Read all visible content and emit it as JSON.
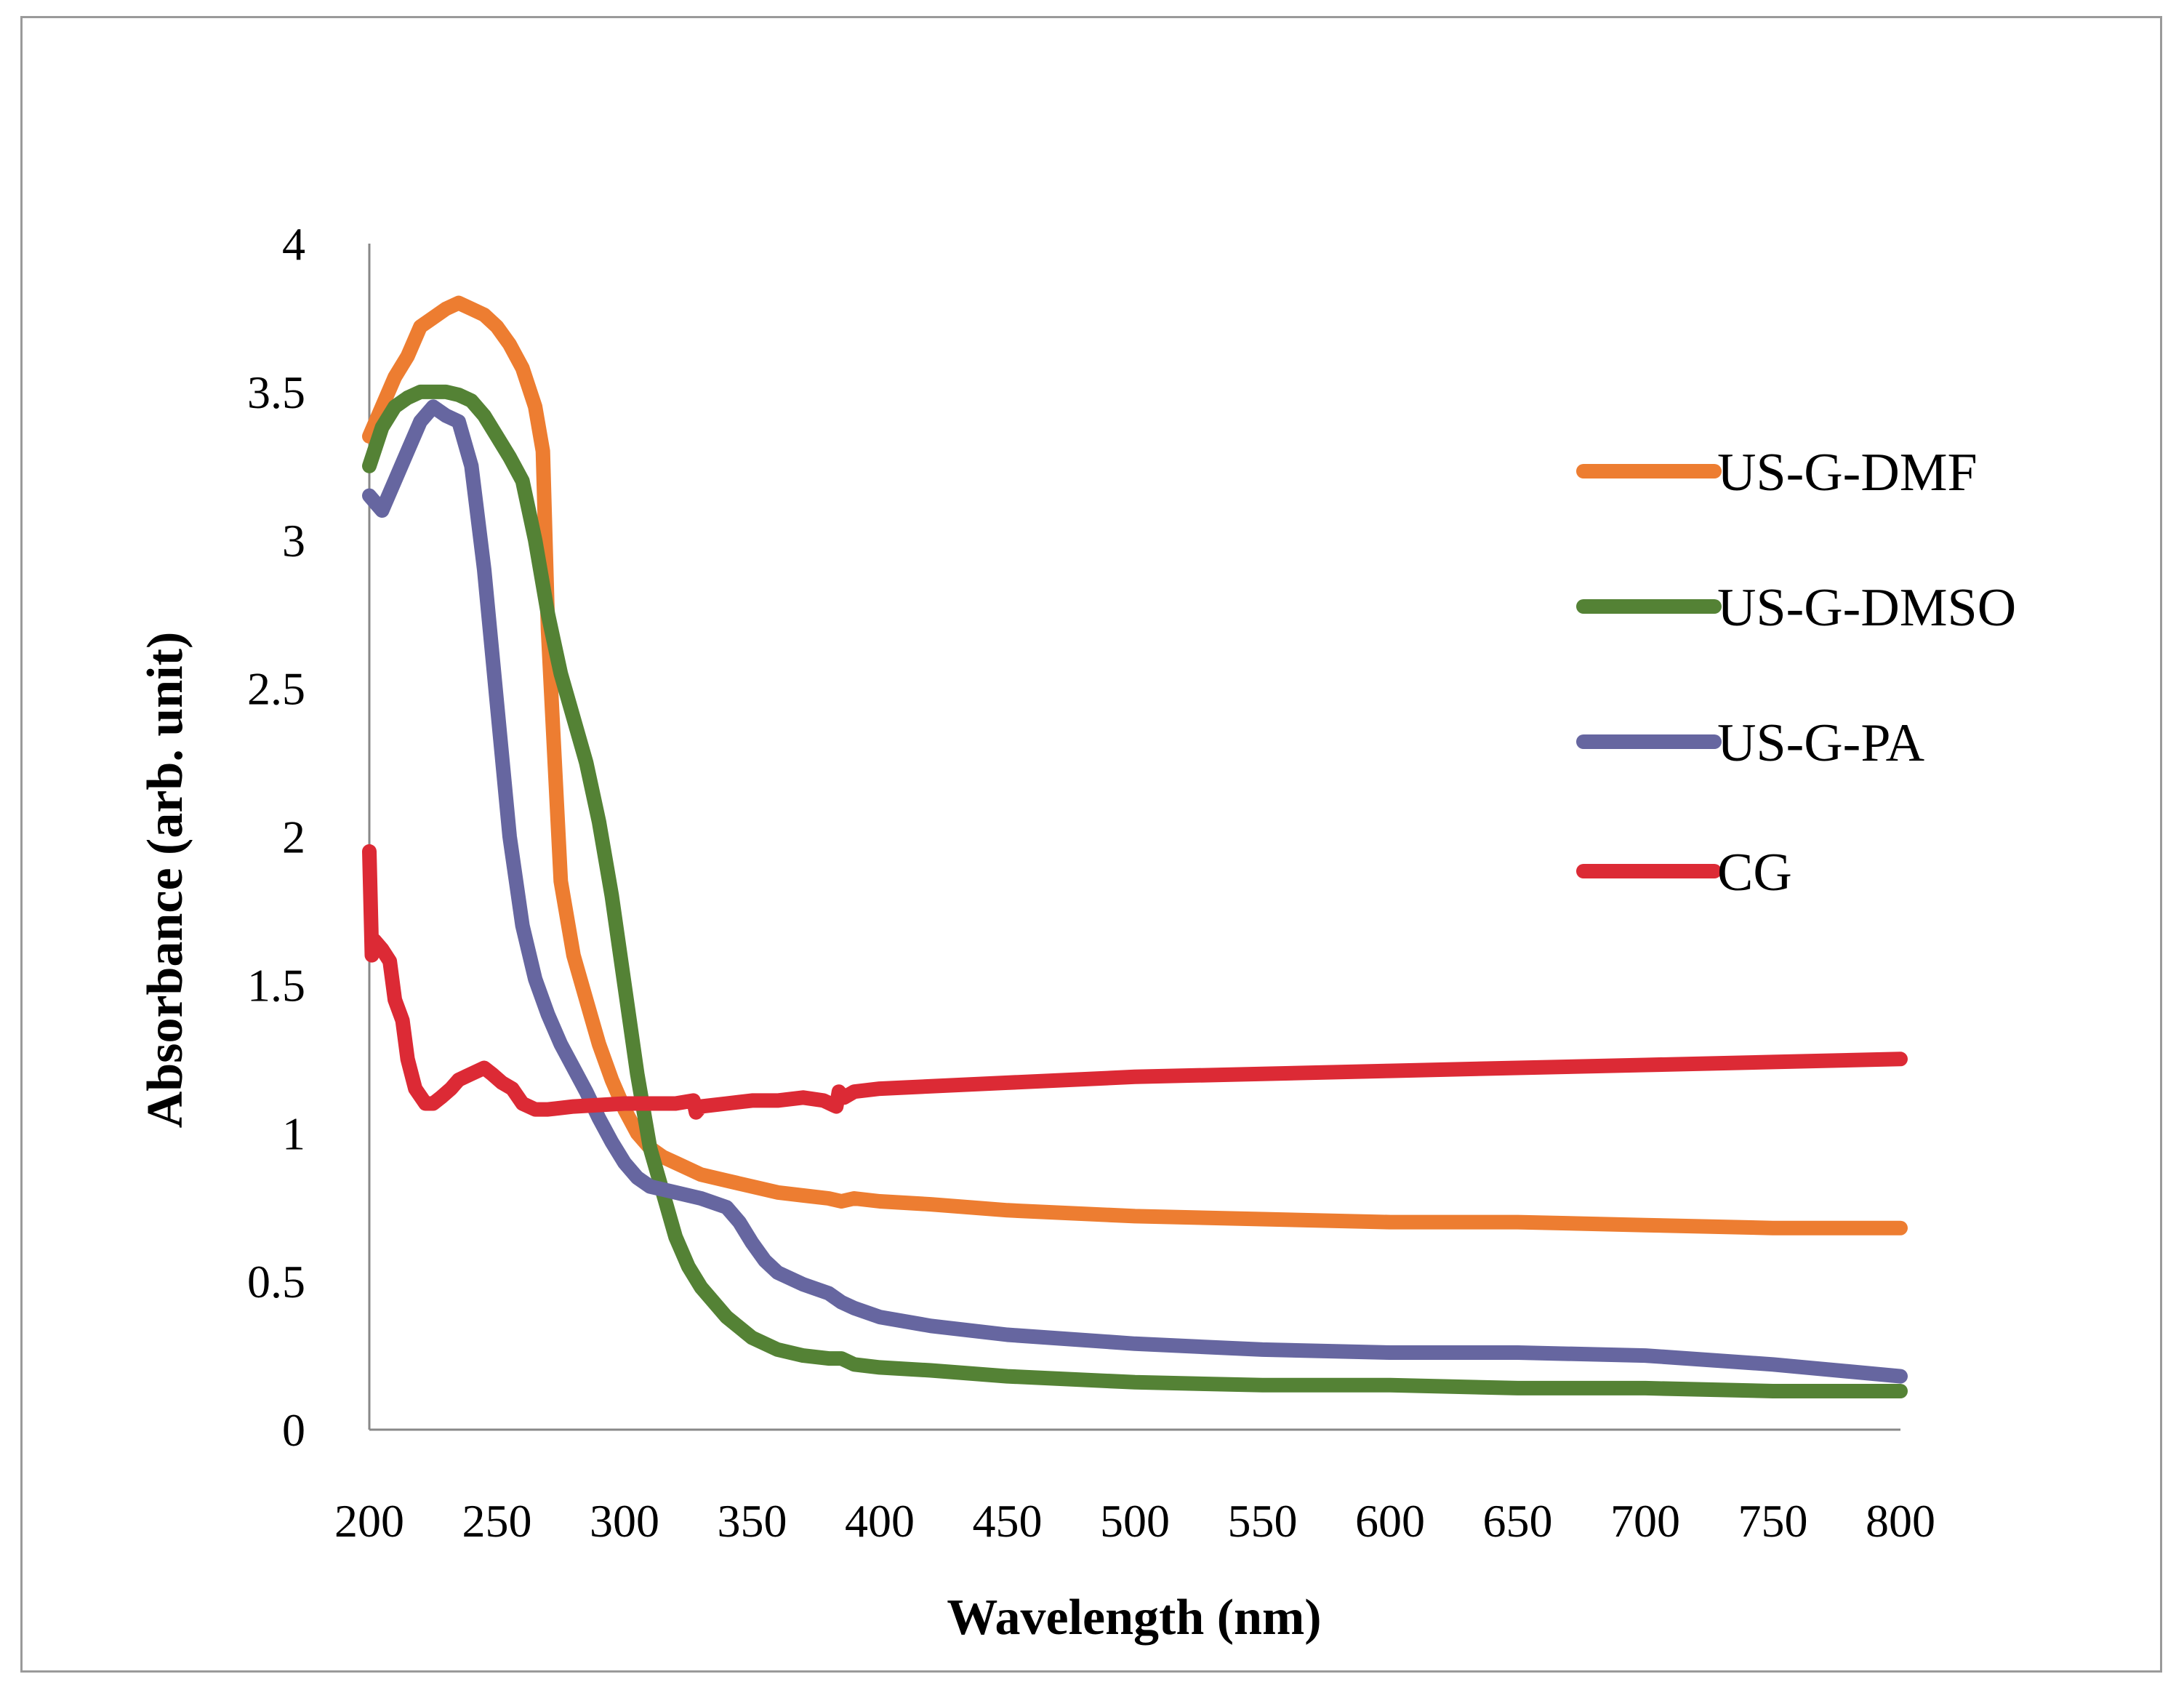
{
  "chart_data": {
    "type": "line",
    "title": "",
    "xlabel": "Wavelength (nm)",
    "ylabel": "Absorbance (arb. unit)",
    "xlim": [
      200,
      800
    ],
    "ylim": [
      0,
      4
    ],
    "xticks": [
      200,
      250,
      300,
      350,
      400,
      450,
      500,
      550,
      600,
      650,
      700,
      750,
      800
    ],
    "yticks": [
      0,
      0.5,
      1,
      1.5,
      2,
      2.5,
      3,
      3.5,
      4
    ],
    "ytick_labels": [
      "0",
      "0.5",
      "1",
      "1.5",
      "2",
      "2.5",
      "3",
      "3.5",
      "4"
    ],
    "grid": false,
    "legend_position": "right",
    "series": [
      {
        "name": "US-G-DMF",
        "color": "#ED7D31",
        "x": [
          200,
          205,
          210,
          215,
          220,
          225,
          230,
          235,
          240,
          245,
          250,
          255,
          260,
          265,
          268,
          270,
          275,
          280,
          285,
          290,
          295,
          300,
          305,
          310,
          315,
          320,
          330,
          340,
          350,
          360,
          370,
          380,
          385,
          390,
          400,
          420,
          450,
          500,
          550,
          600,
          650,
          700,
          750,
          800
        ],
        "y": [
          3.35,
          3.45,
          3.55,
          3.62,
          3.72,
          3.75,
          3.78,
          3.8,
          3.78,
          3.76,
          3.72,
          3.66,
          3.58,
          3.45,
          3.3,
          2.7,
          1.85,
          1.6,
          1.45,
          1.3,
          1.18,
          1.08,
          1.0,
          0.95,
          0.92,
          0.9,
          0.86,
          0.84,
          0.82,
          0.8,
          0.79,
          0.78,
          0.77,
          0.78,
          0.77,
          0.76,
          0.74,
          0.72,
          0.71,
          0.7,
          0.7,
          0.69,
          0.68,
          0.68
        ]
      },
      {
        "name": "US-G-DMSO",
        "color": "#548235",
        "x": [
          200,
          205,
          210,
          215,
          220,
          225,
          230,
          235,
          240,
          245,
          250,
          255,
          260,
          265,
          270,
          275,
          280,
          285,
          290,
          295,
          300,
          305,
          310,
          315,
          320,
          325,
          330,
          340,
          350,
          360,
          370,
          380,
          385,
          390,
          400,
          420,
          450,
          500,
          550,
          600,
          650,
          700,
          750,
          800
        ],
        "y": [
          3.25,
          3.38,
          3.45,
          3.48,
          3.5,
          3.5,
          3.5,
          3.49,
          3.47,
          3.42,
          3.35,
          3.28,
          3.2,
          3.0,
          2.75,
          2.55,
          2.4,
          2.25,
          2.05,
          1.8,
          1.5,
          1.2,
          0.95,
          0.8,
          0.65,
          0.55,
          0.48,
          0.38,
          0.31,
          0.27,
          0.25,
          0.24,
          0.24,
          0.22,
          0.21,
          0.2,
          0.18,
          0.16,
          0.15,
          0.15,
          0.14,
          0.14,
          0.13,
          0.13
        ]
      },
      {
        "name": "US-G-PA",
        "color": "#6666A0",
        "x": [
          200,
          205,
          210,
          215,
          220,
          225,
          230,
          235,
          240,
          245,
          250,
          255,
          260,
          265,
          270,
          275,
          280,
          285,
          290,
          295,
          300,
          305,
          310,
          320,
          330,
          340,
          345,
          350,
          355,
          360,
          370,
          380,
          385,
          390,
          400,
          420,
          450,
          500,
          550,
          600,
          650,
          700,
          750,
          800
        ],
        "y": [
          3.15,
          3.1,
          3.2,
          3.3,
          3.4,
          3.45,
          3.42,
          3.4,
          3.25,
          2.9,
          2.45,
          2.0,
          1.7,
          1.52,
          1.4,
          1.3,
          1.22,
          1.14,
          1.05,
          0.97,
          0.9,
          0.85,
          0.82,
          0.8,
          0.78,
          0.75,
          0.7,
          0.63,
          0.57,
          0.53,
          0.49,
          0.46,
          0.43,
          0.41,
          0.38,
          0.35,
          0.32,
          0.29,
          0.27,
          0.26,
          0.26,
          0.25,
          0.22,
          0.18
        ]
      },
      {
        "name": "CG",
        "color": "#DC2A35",
        "x": [
          200,
          201,
          202,
          205,
          208,
          210,
          213,
          215,
          218,
          222,
          225,
          228,
          232,
          235,
          240,
          245,
          248,
          252,
          256,
          260,
          265,
          270,
          280,
          300,
          320,
          327,
          328,
          330,
          340,
          350,
          360,
          370,
          378,
          383,
          384,
          386,
          390,
          400,
          450,
          500,
          550,
          600,
          650,
          700,
          750,
          800
        ],
        "y": [
          1.95,
          1.6,
          1.65,
          1.62,
          1.58,
          1.45,
          1.38,
          1.25,
          1.15,
          1.1,
          1.1,
          1.12,
          1.15,
          1.18,
          1.2,
          1.22,
          1.2,
          1.17,
          1.15,
          1.1,
          1.08,
          1.08,
          1.09,
          1.1,
          1.1,
          1.11,
          1.07,
          1.09,
          1.1,
          1.11,
          1.11,
          1.12,
          1.11,
          1.09,
          1.14,
          1.12,
          1.14,
          1.15,
          1.17,
          1.19,
          1.2,
          1.21,
          1.22,
          1.23,
          1.24,
          1.25
        ]
      }
    ]
  }
}
